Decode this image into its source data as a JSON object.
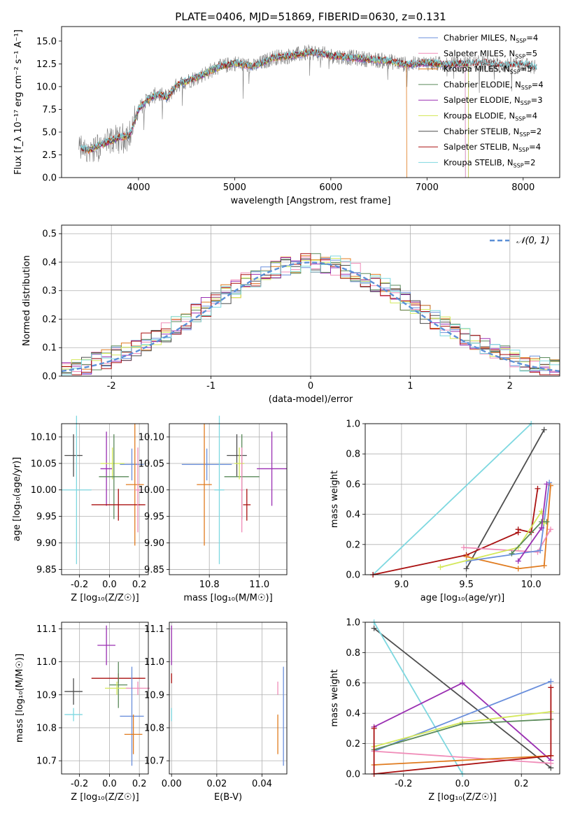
{
  "colors": {
    "chabrier_miles": "#6a8fdc",
    "salpeter_miles": "#f08cb8",
    "kroupa_miles": "#e07b1f",
    "chabrier_elodie": "#5a8a5a",
    "salpeter_elodie": "#9a2fb2",
    "kroupa_elodie": "#d4e85a",
    "chabrier_stelib": "#4d4d4d",
    "salpeter_stelib": "#aa1111",
    "kroupa_stelib": "#7ed8e0",
    "normal": "#5b8fd6"
  },
  "chart_data": [
    {
      "id": "spectrum",
      "type": "line",
      "title": "PLATE=0406, MJD=51869, FIBERID=0630, z=0.131",
      "xlabel": "wavelength [Angstrom, rest frame]",
      "ylabel": "Flux [f_λ 10⁻¹⁷ erg cm⁻² s⁻¹ A⁻¹]",
      "xlim": [
        3200,
        8380
      ],
      "ylim": [
        0,
        16.6
      ],
      "xticks": [
        4000,
        5000,
        6000,
        7000,
        8000
      ],
      "yticks": [
        0.0,
        2.5,
        5.0,
        7.5,
        10.0,
        12.5,
        15.0
      ],
      "grid": false,
      "legend_position": "right",
      "legend": [
        {
          "key": "chabrier_miles",
          "label": "Chabrier MILES, N",
          "sub": "SSP",
          "suffix": "=4"
        },
        {
          "key": "salpeter_miles",
          "label": "Salpeter MILES, N",
          "sub": "SSP",
          "suffix": "=5"
        },
        {
          "key": "kroupa_miles",
          "label": "Kroupa MILES, N",
          "sub": "SSP",
          "suffix": "=5"
        },
        {
          "key": "chabrier_elodie",
          "label": "Chabrier ELODIE, N",
          "sub": "SSP",
          "suffix": "=4"
        },
        {
          "key": "salpeter_elodie",
          "label": "Salpeter ELODIE, N",
          "sub": "SSP",
          "suffix": "=3"
        },
        {
          "key": "kroupa_elodie",
          "label": "Kroupa ELODIE, N",
          "sub": "SSP",
          "suffix": "=4"
        },
        {
          "key": "chabrier_stelib",
          "label": "Chabrier STELIB, N",
          "sub": "SSP",
          "suffix": "=2"
        },
        {
          "key": "salpeter_stelib",
          "label": "Salpeter STELIB, N",
          "sub": "SSP",
          "suffix": "=4"
        },
        {
          "key": "kroupa_stelib",
          "label": "Kroupa STELIB, N",
          "sub": "SSP",
          "suffix": "=2"
        }
      ],
      "continuum": [
        [
          3400,
          3.2
        ],
        [
          3500,
          3.0
        ],
        [
          3600,
          3.6
        ],
        [
          3700,
          4.0
        ],
        [
          3800,
          4.4
        ],
        [
          3900,
          4.6
        ],
        [
          3950,
          5.8
        ],
        [
          4000,
          7.5
        ],
        [
          4100,
          8.6
        ],
        [
          4200,
          9.2
        ],
        [
          4300,
          8.8
        ],
        [
          4400,
          10.2
        ],
        [
          4600,
          11.0
        ],
        [
          4800,
          12.0
        ],
        [
          5000,
          12.6
        ],
        [
          5200,
          12.2
        ],
        [
          5400,
          13.2
        ],
        [
          5600,
          13.4
        ],
        [
          5800,
          13.8
        ],
        [
          6000,
          13.4
        ],
        [
          6200,
          13.2
        ],
        [
          6400,
          13.0
        ],
        [
          6600,
          12.8
        ],
        [
          6800,
          12.4
        ],
        [
          7000,
          12.6
        ],
        [
          7200,
          12.4
        ],
        [
          7400,
          12.5
        ],
        [
          7600,
          12.6
        ],
        [
          7800,
          12.3
        ],
        [
          8000,
          12.5
        ],
        [
          8140,
          12.0
        ]
      ],
      "observed_x_range": [
        3380,
        8140
      ],
      "model_x_ranges": {
        "chabrier_miles": [
          3450,
          7400
        ],
        "salpeter_miles": [
          3450,
          7400
        ],
        "kroupa_miles": [
          3450,
          6790
        ],
        "chabrier_elodie": [
          3500,
          7430
        ],
        "salpeter_elodie": [
          3500,
          7430
        ],
        "kroupa_elodie": [
          3500,
          7430
        ],
        "chabrier_stelib": [
          3400,
          8140
        ],
        "salpeter_stelib": [
          3400,
          8140
        ],
        "kroupa_stelib": [
          3400,
          8140
        ]
      }
    },
    {
      "id": "residuals",
      "type": "histogram",
      "xlabel": "(data-model)/error",
      "ylabel": "Normed distribution",
      "xlim": [
        -2.5,
        2.5
      ],
      "ylim": [
        0,
        0.53
      ],
      "xticks": [
        -2,
        -1,
        0,
        1,
        2
      ],
      "yticks": [
        0.0,
        0.1,
        0.2,
        0.3,
        0.4,
        0.5
      ],
      "grid": true,
      "legend_position": "top-right",
      "legend": [
        {
          "label": "𝒩(0, 1)"
        }
      ],
      "bin_width": 0.1
    },
    {
      "id": "age_vs_Z",
      "type": "errorbar",
      "xlabel": "Z [log₁₀(Z/Z☉)]",
      "ylabel": "age  [log₁₀(age/yr)]",
      "xlim": [
        -0.32,
        0.26
      ],
      "ylim": [
        9.84,
        10.125
      ],
      "xticks": [
        -0.2,
        0.0,
        0.2
      ],
      "yticks": [
        9.85,
        9.9,
        9.95,
        10.0,
        10.05,
        10.1
      ],
      "grid": true,
      "points": [
        {
          "key": "chabrier_stelib",
          "x": -0.24,
          "xerr": 0.06,
          "y": 10.065,
          "yerr": 0.04
        },
        {
          "key": "kroupa_stelib",
          "x": -0.22,
          "xerr": 0.1,
          "y": 10.0,
          "yerr": 0.14
        },
        {
          "key": "salpeter_elodie",
          "x": -0.02,
          "xerr": 0.04,
          "y": 10.04,
          "yerr": 0.07
        },
        {
          "key": "kroupa_elodie",
          "x": 0.02,
          "xerr": 0.08,
          "y": 10.05,
          "yerr": 0.03
        },
        {
          "key": "chabrier_elodie",
          "x": 0.03,
          "xerr": 0.1,
          "y": 10.025,
          "yerr": 0.08
        },
        {
          "key": "chabrier_miles",
          "x": 0.15,
          "xerr": 0.08,
          "y": 10.048,
          "yerr": 0.03
        },
        {
          "key": "kroupa_miles",
          "x": 0.17,
          "xerr": 0.06,
          "y": 10.01,
          "yerr": 0.115
        },
        {
          "key": "salpeter_stelib",
          "x": 0.06,
          "xerr": 0.18,
          "y": 9.972,
          "yerr": 0.03
        },
        {
          "key": "salpeter_miles",
          "x": 0.19,
          "xerr": 0.02,
          "y": 10.0,
          "yerr": 0.08
        }
      ]
    },
    {
      "id": "age_vs_mass",
      "type": "errorbar",
      "xlabel": "mass [log₁₀(M/M☉)]",
      "ylabel": "",
      "xlim": [
        10.64,
        11.11
      ],
      "ylim": [
        9.84,
        10.125
      ],
      "xticks": [
        10.8,
        11.0
      ],
      "yticks": [
        9.85,
        9.9,
        9.95,
        10.0,
        10.05,
        10.1
      ],
      "grid": true,
      "points": [
        {
          "key": "chabrier_miles",
          "x": 10.79,
          "xerr": 0.1,
          "y": 10.048,
          "yerr": 0.03
        },
        {
          "key": "kroupa_miles",
          "x": 10.78,
          "xerr": 0.03,
          "y": 10.01,
          "yerr": 0.115
        },
        {
          "key": "kroupa_stelib",
          "x": 10.84,
          "xerr": 0.02,
          "y": 10.0,
          "yerr": 0.14
        },
        {
          "key": "chabrier_stelib",
          "x": 10.91,
          "xerr": 0.04,
          "y": 10.065,
          "yerr": 0.04
        },
        {
          "key": "chabrier_elodie",
          "x": 10.93,
          "xerr": 0.07,
          "y": 10.025,
          "yerr": 0.08
        },
        {
          "key": "kroupa_elodie",
          "x": 10.92,
          "xerr": 0.02,
          "y": 10.05,
          "yerr": 0.03
        },
        {
          "key": "salpeter_stelib",
          "x": 10.95,
          "xerr": 0.015,
          "y": 9.972,
          "yerr": 0.03
        },
        {
          "key": "salpeter_elodie",
          "x": 11.05,
          "xerr": 0.06,
          "y": 10.04,
          "yerr": 0.07
        },
        {
          "key": "salpeter_miles",
          "x": 10.93,
          "xerr": 0.005,
          "y": 10.0,
          "yerr": 0.08
        }
      ]
    },
    {
      "id": "weight_vs_age",
      "type": "line",
      "xlabel": "age  [log₁₀(age/yr)]",
      "ylabel": "mass weight",
      "xlim": [
        8.72,
        10.22
      ],
      "ylim": [
        0,
        1.0
      ],
      "xticks": [
        9.0,
        9.5,
        10.0
      ],
      "yticks": [
        0.0,
        0.2,
        0.4,
        0.6,
        0.8,
        1.0
      ],
      "grid": true,
      "series": [
        {
          "key": "kroupa_stelib",
          "points": [
            [
              8.78,
              0.0
            ],
            [
              10.0,
              1.0
            ]
          ]
        },
        {
          "key": "chabrier_stelib",
          "points": [
            [
              9.5,
              0.04
            ],
            [
              10.1,
              0.96
            ]
          ]
        },
        {
          "key": "salpeter_stelib",
          "points": [
            [
              8.78,
              0.0
            ],
            [
              9.5,
              0.13
            ],
            [
              9.9,
              0.28
            ],
            [
              9.9,
              0.3
            ],
            [
              10.0,
              0.28
            ],
            [
              10.05,
              0.57
            ]
          ]
        },
        {
          "key": "kroupa_miles",
          "points": [
            [
              9.5,
              0.12
            ],
            [
              9.9,
              0.04
            ],
            [
              10.1,
              0.06
            ],
            [
              10.15,
              0.59
            ]
          ]
        },
        {
          "key": "salpeter_miles",
          "points": [
            [
              9.48,
              0.18
            ],
            [
              10.05,
              0.15
            ],
            [
              10.15,
              0.3
            ]
          ]
        },
        {
          "key": "chabrier_miles",
          "points": [
            [
              9.5,
              0.09
            ],
            [
              10.07,
              0.16
            ],
            [
              10.14,
              0.61
            ]
          ]
        },
        {
          "key": "kroupa_elodie",
          "points": [
            [
              9.3,
              0.05
            ],
            [
              9.9,
              0.18
            ],
            [
              10.08,
              0.42
            ],
            [
              10.1,
              0.34
            ]
          ]
        },
        {
          "key": "chabrier_elodie",
          "points": [
            [
              9.85,
              0.14
            ],
            [
              10.08,
              0.35
            ],
            [
              10.12,
              0.35
            ]
          ]
        },
        {
          "key": "salpeter_elodie",
          "points": [
            [
              9.9,
              0.09
            ],
            [
              10.08,
              0.31
            ],
            [
              10.12,
              0.6
            ]
          ]
        }
      ]
    },
    {
      "id": "mass_vs_Z",
      "type": "errorbar",
      "xlabel": "Z [log₁₀(Z/Z☉)]",
      "ylabel": "mass [log₁₀(M/M☉)]",
      "xlim": [
        -0.32,
        0.26
      ],
      "ylim": [
        10.66,
        11.12
      ],
      "xticks": [
        -0.2,
        0.0,
        0.2
      ],
      "yticks": [
        10.7,
        10.8,
        10.9,
        11.0,
        11.1
      ],
      "grid": true,
      "points": [
        {
          "key": "salpeter_elodie",
          "x": -0.02,
          "xerr": 0.06,
          "y": 11.05,
          "yerr": 0.06
        },
        {
          "key": "salpeter_stelib",
          "x": 0.06,
          "xerr": 0.18,
          "y": 10.95,
          "yerr": 0.015
        },
        {
          "key": "chabrier_elodie",
          "x": 0.06,
          "xerr": 0.06,
          "y": 10.93,
          "yerr": 0.07
        },
        {
          "key": "kroupa_elodie",
          "x": 0.05,
          "xerr": 0.08,
          "y": 10.92,
          "yerr": 0.02
        },
        {
          "key": "salpeter_miles",
          "x": 0.19,
          "xerr": 0.08,
          "y": 10.92,
          "yerr": 0.02
        },
        {
          "key": "chabrier_stelib",
          "x": -0.24,
          "xerr": 0.06,
          "y": 10.91,
          "yerr": 0.04
        },
        {
          "key": "kroupa_stelib",
          "x": -0.24,
          "xerr": 0.06,
          "y": 10.84,
          "yerr": 0.02
        },
        {
          "key": "chabrier_miles",
          "x": 0.15,
          "xerr": 0.08,
          "y": 10.835,
          "yerr": 0.15
        },
        {
          "key": "kroupa_miles",
          "x": 0.16,
          "xerr": 0.06,
          "y": 10.78,
          "yerr": 0.06
        }
      ]
    },
    {
      "id": "mass_vs_ebv",
      "type": "errorbar",
      "xlabel": "E(B-V)",
      "ylabel": "",
      "xlim": [
        -0.001,
        0.051
      ],
      "ylim": [
        10.66,
        11.12
      ],
      "xticks": [
        0.0,
        0.02,
        0.04
      ],
      "yticks": [
        10.7,
        10.8,
        10.9,
        11.0,
        11.1
      ],
      "grid": true,
      "points": [
        {
          "key": "salpeter_elodie",
          "x": 0.0,
          "xerr": 0.0,
          "y": 11.05,
          "yerr": 0.06
        },
        {
          "key": "salpeter_stelib",
          "x": 0.0,
          "xerr": 0.0,
          "y": 10.95,
          "yerr": 0.015
        },
        {
          "key": "kroupa_stelib",
          "x": 0.0,
          "xerr": 0.0,
          "y": 10.84,
          "yerr": 0.02
        },
        {
          "key": "salpeter_miles",
          "x": 0.047,
          "xerr": 0.0,
          "y": 10.92,
          "yerr": 0.02
        },
        {
          "key": "kroupa_miles",
          "x": 0.047,
          "xerr": 0.0,
          "y": 10.78,
          "yerr": 0.06
        },
        {
          "key": "chabrier_miles",
          "x": 0.0495,
          "xerr": 0.0,
          "y": 10.835,
          "yerr": 0.15
        }
      ]
    },
    {
      "id": "weight_vs_Z",
      "type": "line",
      "xlabel": "Z [log₁₀(Z/Z☉)]",
      "ylabel": "mass weight",
      "xlim": [
        -0.33,
        0.33
      ],
      "ylim": [
        0,
        1.0
      ],
      "xticks": [
        -0.2,
        0.0,
        0.2
      ],
      "yticks": [
        0.0,
        0.2,
        0.4,
        0.6,
        0.8,
        1.0
      ],
      "grid": true,
      "series": [
        {
          "key": "chabrier_stelib",
          "points": [
            [
              -0.3,
              0.96
            ],
            [
              0.3,
              0.04
            ]
          ]
        },
        {
          "key": "kroupa_stelib",
          "points": [
            [
              -0.3,
              1.0
            ],
            [
              0.0,
              0.0
            ]
          ]
        },
        {
          "key": "salpeter_elodie",
          "points": [
            [
              -0.3,
              0.31
            ],
            [
              0.0,
              0.6
            ],
            [
              0.3,
              0.09
            ]
          ]
        },
        {
          "key": "chabrier_miles",
          "points": [
            [
              -0.3,
              0.15
            ],
            [
              0.3,
              0.61
            ]
          ]
        },
        {
          "key": "kroupa_elodie",
          "points": [
            [
              -0.3,
              0.18
            ],
            [
              0.0,
              0.34
            ],
            [
              0.3,
              0.41
            ]
          ]
        },
        {
          "key": "chabrier_elodie",
          "points": [
            [
              -0.3,
              0.16
            ],
            [
              0.0,
              0.33
            ],
            [
              0.3,
              0.36
            ]
          ]
        },
        {
          "key": "salpeter_miles",
          "points": [
            [
              -0.3,
              0.15
            ],
            [
              0.3,
              0.07
            ]
          ]
        },
        {
          "key": "kroupa_miles",
          "points": [
            [
              -0.3,
              0.06
            ],
            [
              0.3,
              0.12
            ]
          ]
        },
        {
          "key": "salpeter_stelib",
          "points": [
            [
              -0.3,
              0.3
            ],
            [
              -0.3,
              0.0
            ],
            [
              0.3,
              0.12
            ],
            [
              0.3,
              0.57
            ]
          ]
        }
      ]
    }
  ]
}
